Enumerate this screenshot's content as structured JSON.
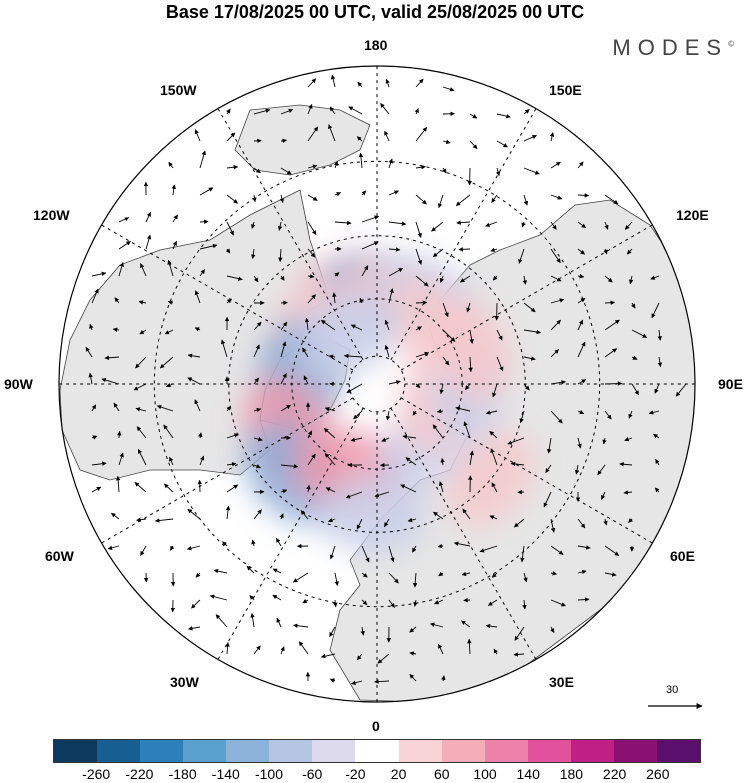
{
  "title": "Base 17/08/2025 00 UTC, valid 25/08/2025 00 UTC",
  "brand": "MODES",
  "brand_mark": "©",
  "longitude_labels": {
    "deg180": "180",
    "w150": "150W",
    "e150": "150E",
    "w120": "120W",
    "e120": "120E",
    "w90": "90W",
    "e90": "90E",
    "w60": "60W",
    "e60": "60E",
    "w30": "30W",
    "e30": "30E",
    "deg0": "0"
  },
  "reference_vector": {
    "value": "30"
  },
  "colorbar": {
    "colors": [
      "#0b3a5e",
      "#175f92",
      "#2c80b9",
      "#5aa0cd",
      "#8cb4da",
      "#b4c6e4",
      "#dedaee",
      "#ffffff",
      "#f9d4d6",
      "#f3aeb9",
      "#ee81a9",
      "#e2519b",
      "#c01f86",
      "#8a1071",
      "#590f6b"
    ],
    "ticks": [
      "-260",
      "-220",
      "-180",
      "-140",
      "-100",
      "-60",
      "-20",
      "20",
      "60",
      "100",
      "140",
      "180",
      "220",
      "260"
    ]
  },
  "anomaly_blobs": [
    {
      "sign": "pos",
      "strength": 1,
      "lat": 55,
      "lon": -160
    },
    {
      "sign": "neg",
      "strength": 2,
      "lat": 58,
      "lon": -178
    },
    {
      "sign": "pos",
      "strength": 1,
      "lat": 58,
      "lon": 168
    },
    {
      "sign": "neg",
      "strength": 1,
      "lat": 55,
      "lon": 150
    },
    {
      "sign": "pos",
      "strength": 1,
      "lat": 60,
      "lon": -128
    },
    {
      "sign": "neg",
      "strength": 2,
      "lat": 62,
      "lon": -95
    },
    {
      "sign": "pos",
      "strength": 2,
      "lat": 55,
      "lon": -60
    },
    {
      "sign": "neg",
      "strength": 2,
      "lat": 48,
      "lon": -42
    },
    {
      "sign": "pos",
      "strength": 2,
      "lat": 58,
      "lon": -15
    },
    {
      "sign": "neg",
      "strength": 1,
      "lat": 45,
      "lon": -2
    },
    {
      "sign": "neg",
      "strength": 1,
      "lat": 62,
      "lon": 40
    },
    {
      "sign": "pos",
      "strength": 1,
      "lat": 68,
      "lon": 75
    },
    {
      "sign": "neg",
      "strength": 1,
      "lat": 58,
      "lon": 90
    },
    {
      "sign": "pos",
      "strength": 1,
      "lat": 55,
      "lon": 110
    },
    {
      "sign": "pos",
      "strength": 1,
      "lat": 62,
      "lon": 140
    },
    {
      "sign": "neg",
      "strength": 1,
      "lat": 70,
      "lon": -150
    },
    {
      "sign": "pos",
      "strength": 1,
      "lat": 40,
      "lon": 50
    }
  ]
}
